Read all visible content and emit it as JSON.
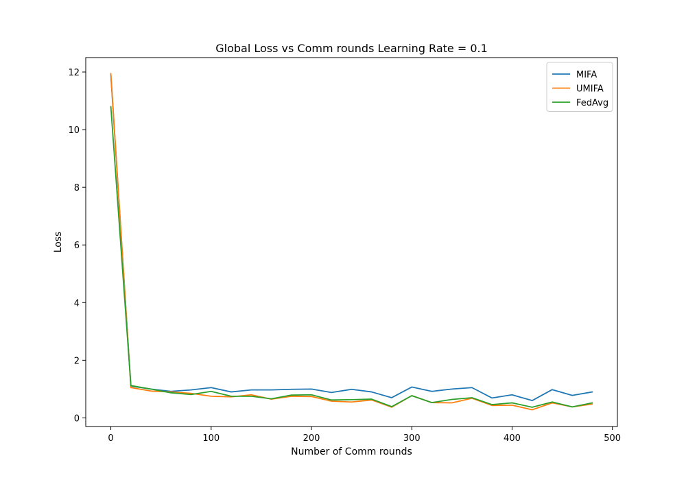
{
  "chart_data": {
    "type": "line",
    "title": "Global Loss vs Comm rounds Learning Rate = 0.1",
    "xlabel": "Number of Comm rounds",
    "ylabel": "Loss",
    "xlim": [
      -25,
      505
    ],
    "ylim": [
      -0.3,
      12.5
    ],
    "xticks": [
      0,
      100,
      200,
      300,
      400,
      500
    ],
    "yticks": [
      0,
      2,
      4,
      6,
      8,
      10,
      12
    ],
    "grid": false,
    "legend_position": "top-right",
    "x": [
      0,
      20,
      40,
      60,
      80,
      100,
      120,
      140,
      160,
      180,
      200,
      220,
      240,
      260,
      280,
      300,
      320,
      340,
      360,
      380,
      400,
      420,
      440,
      460,
      480
    ],
    "series": [
      {
        "name": "MIFA",
        "color": "#1f77b4",
        "values": [
          11.9,
          1.1,
          1.0,
          0.92,
          0.97,
          1.05,
          0.9,
          0.97,
          0.97,
          0.99,
          1.0,
          0.88,
          0.99,
          0.9,
          0.7,
          1.07,
          0.92,
          1.0,
          1.05,
          0.69,
          0.8,
          0.6,
          0.98,
          0.78,
          0.9
        ]
      },
      {
        "name": "UMIFA",
        "color": "#ff7f0e",
        "values": [
          11.95,
          1.05,
          0.93,
          0.9,
          0.85,
          0.75,
          0.73,
          0.8,
          0.65,
          0.75,
          0.74,
          0.58,
          0.55,
          0.62,
          0.37,
          0.77,
          0.53,
          0.52,
          0.68,
          0.43,
          0.44,
          0.28,
          0.52,
          0.38,
          0.48
        ]
      },
      {
        "name": "FedAvg",
        "color": "#2ca02c",
        "values": [
          10.8,
          1.12,
          1.0,
          0.87,
          0.81,
          0.92,
          0.75,
          0.75,
          0.66,
          0.79,
          0.8,
          0.62,
          0.63,
          0.65,
          0.39,
          0.77,
          0.53,
          0.64,
          0.7,
          0.46,
          0.52,
          0.37,
          0.55,
          0.38,
          0.52
        ]
      }
    ]
  }
}
